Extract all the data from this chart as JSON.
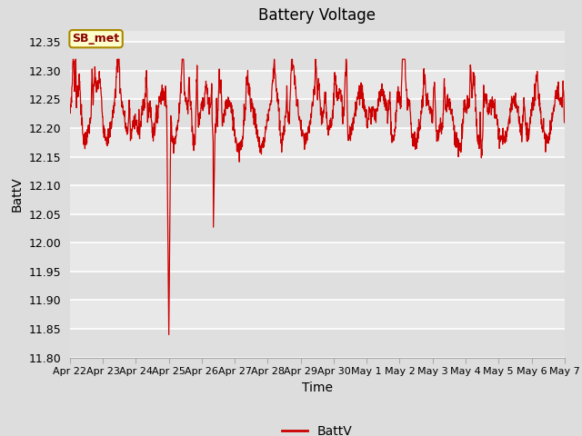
{
  "title": "Battery Voltage",
  "xlabel": "Time",
  "ylabel": "BattV",
  "legend_label": "BattV",
  "line_color": "#cc0000",
  "fig_bg_color": "#dddddd",
  "plot_bg_color": "#e8e8e8",
  "grid_color": "#ffffff",
  "ylim": [
    11.8,
    12.37
  ],
  "yticks": [
    11.8,
    11.85,
    11.9,
    11.95,
    12.0,
    12.05,
    12.1,
    12.15,
    12.2,
    12.25,
    12.3,
    12.35
  ],
  "xlim_days": [
    0,
    15
  ],
  "annotation_text": "SB_met",
  "annotation_box_facecolor": "#ffffcc",
  "annotation_box_edgecolor": "#aa8800",
  "annotation_text_color": "#880000",
  "tick_labels": [
    "Apr 22",
    "Apr 23",
    "Apr 24",
    "Apr 25",
    "Apr 26",
    "Apr 27",
    "Apr 28",
    "Apr 29",
    "Apr 30",
    "May 1",
    "May 2",
    "May 3",
    "May 4",
    "May 5",
    "May 6",
    "May 7"
  ],
  "tick_positions": [
    0,
    1,
    2,
    3,
    4,
    5,
    6,
    7,
    8,
    9,
    10,
    11,
    12,
    13,
    14,
    15
  ]
}
